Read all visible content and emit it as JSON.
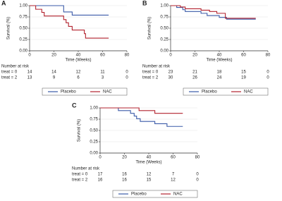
{
  "chart_data": [
    {
      "type": "step",
      "label": "A",
      "xlabel": "Time (Weeks)",
      "ylabel": "Survival (%)",
      "xlim": [
        0,
        80
      ],
      "xticks": [
        0,
        20,
        40,
        60,
        80
      ],
      "ylim": [
        0,
        1
      ],
      "yticks": [
        {
          "value": 0,
          "label": "0.00"
        },
        {
          "value": 0.25,
          "label": "0.25"
        },
        {
          "value": 0.5,
          "label": "0.50"
        },
        {
          "value": 0.75,
          "label": "0.75"
        },
        {
          "value": 1,
          "label": "1.00"
        }
      ],
      "series": [
        {
          "name": "Placebo",
          "color": "#3a5aa8",
          "x": [
            0,
            28,
            35,
            65
          ],
          "values": [
            1,
            0.86,
            0.79,
            0.79
          ]
        },
        {
          "name": "NAC",
          "color": "#b2222e",
          "x": [
            0,
            5,
            10,
            12,
            28,
            30,
            32,
            35,
            45,
            46,
            65
          ],
          "values": [
            1,
            0.92,
            0.85,
            0.77,
            0.69,
            0.62,
            0.54,
            0.46,
            0.38,
            0.28,
            0.28
          ]
        }
      ],
      "risk_table": {
        "title": "Number at risk",
        "rows": [
          {
            "label": "treat = 0",
            "values": [
              14,
              14,
              12,
              11,
              0
            ]
          },
          {
            "label": "treat = 2",
            "values": [
              13,
              9,
              6,
              3,
              0
            ]
          }
        ]
      }
    },
    {
      "type": "step",
      "label": "B",
      "xlabel": "Time (Weeks)",
      "ylabel": "Survival (%)",
      "xlim": [
        0,
        80
      ],
      "xticks": [
        0,
        20,
        40,
        60,
        80
      ],
      "ylim": [
        0,
        1
      ],
      "yticks": [
        {
          "value": 0,
          "label": "0.00"
        },
        {
          "value": 0.25,
          "label": "0.25"
        },
        {
          "value": 0.5,
          "label": "0.50"
        },
        {
          "value": 0.75,
          "label": "0.75"
        },
        {
          "value": 1,
          "label": "1.00"
        }
      ],
      "series": [
        {
          "name": "Placebo",
          "color": "#3a5aa8",
          "x": [
            0,
            5,
            10,
            12,
            25,
            30,
            40,
            46,
            70
          ],
          "values": [
            1,
            0.96,
            0.91,
            0.87,
            0.83,
            0.78,
            0.74,
            0.7,
            0.7
          ]
        },
        {
          "name": "NAC",
          "color": "#b2222e",
          "x": [
            0,
            8,
            12,
            25,
            32,
            38,
            45,
            70
          ],
          "values": [
            1,
            0.97,
            0.93,
            0.9,
            0.87,
            0.83,
            0.72,
            0.72
          ]
        }
      ],
      "risk_table": {
        "title": "Number at risk",
        "rows": [
          {
            "label": "treat = 0",
            "values": [
              23,
              21,
              18,
              15,
              0
            ]
          },
          {
            "label": "treat = 2",
            "values": [
              30,
              26,
              24,
              19,
              0
            ]
          }
        ]
      }
    },
    {
      "type": "step",
      "label": "C",
      "xlabel": "Time (Weeks)",
      "ylabel": "Survival (%)",
      "xlim": [
        0,
        80
      ],
      "xticks": [
        0,
        20,
        40,
        60,
        80
      ],
      "ylim": [
        0,
        1
      ],
      "yticks": [
        {
          "value": 0,
          "label": "0.00"
        },
        {
          "value": 0.25,
          "label": "0.25"
        },
        {
          "value": 0.5,
          "label": "0.50"
        },
        {
          "value": 0.75,
          "label": "0.75"
        },
        {
          "value": 1,
          "label": "1.00"
        }
      ],
      "series": [
        {
          "name": "Placebo",
          "color": "#3a5aa8",
          "x": [
            0,
            15,
            25,
            28,
            30,
            33,
            45,
            55,
            68
          ],
          "values": [
            1,
            0.94,
            0.88,
            0.82,
            0.76,
            0.7,
            0.65,
            0.59,
            0.59
          ]
        },
        {
          "name": "NAC",
          "color": "#b2222e",
          "x": [
            0,
            32,
            45,
            68
          ],
          "values": [
            1,
            0.94,
            0.88,
            0.88
          ]
        }
      ],
      "risk_table": {
        "title": "Number at risk",
        "rows": [
          {
            "label": "treat = 0",
            "values": [
              17,
              16,
              12,
              7,
              0
            ]
          },
          {
            "label": "treat = 2",
            "values": [
              16,
              16,
              15,
              12,
              0
            ]
          }
        ]
      }
    }
  ]
}
